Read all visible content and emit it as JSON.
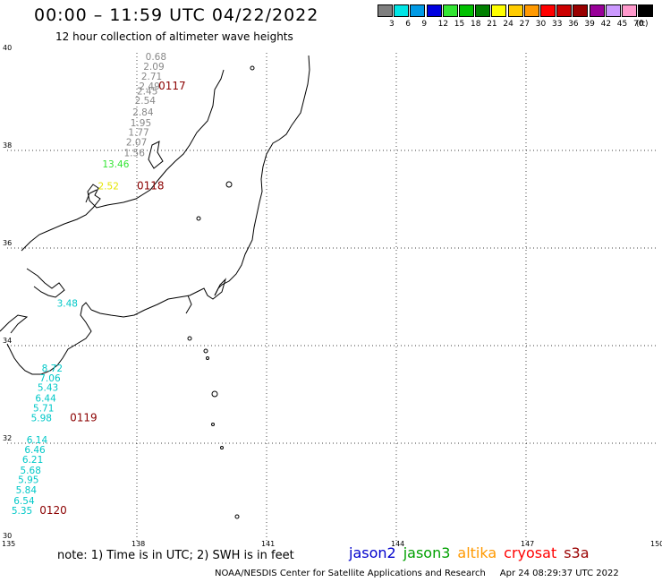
{
  "header": {
    "title": "00:00 – 11:59 UTC 04/22/2022",
    "subtitle": "12 hour collection of altimeter wave heights"
  },
  "color_scale": {
    "unit": "(ft)",
    "bins": [
      {
        "label": "3",
        "color": "#7f7f7f"
      },
      {
        "label": "6",
        "color": "#00e5e5"
      },
      {
        "label": "9",
        "color": "#009ae5"
      },
      {
        "label": "12",
        "color": "#0000e0"
      },
      {
        "label": "15",
        "color": "#33e533"
      },
      {
        "label": "18",
        "color": "#00c000"
      },
      {
        "label": "21",
        "color": "#008000"
      },
      {
        "label": "24",
        "color": "#ffff00"
      },
      {
        "label": "27",
        "color": "#ffcc00"
      },
      {
        "label": "30",
        "color": "#ff9900"
      },
      {
        "label": "33",
        "color": "#ff0000"
      },
      {
        "label": "36",
        "color": "#cc0000"
      },
      {
        "label": "39",
        "color": "#990000"
      },
      {
        "label": "42",
        "color": "#990099"
      },
      {
        "label": "45",
        "color": "#cc99ff"
      },
      {
        "label": "70",
        "color": "#ff99cc"
      },
      {
        "label": "",
        "color": "#000000"
      }
    ]
  },
  "map": {
    "lon_labels": [
      "135",
      "138",
      "141",
      "144",
      "147",
      "150"
    ],
    "lat_labels": [
      "30",
      "32",
      "34",
      "36",
      "38",
      "40"
    ],
    "lon_range": [
      135,
      150
    ],
    "lat_range": [
      30,
      40
    ]
  },
  "tracks": [
    {
      "pass": "0117",
      "color": "#888888",
      "points": [
        {
          "value": "0.68",
          "lon": 138.2,
          "lat": 39.85
        },
        {
          "value": "2.09",
          "lon": 138.15,
          "lat": 39.65
        },
        {
          "value": "2.71",
          "lon": 138.1,
          "lat": 39.45
        },
        {
          "value": "2.49",
          "lon": 138.05,
          "lat": 39.25
        },
        {
          "value": "2.45",
          "lon": 138.0,
          "lat": 39.15
        },
        {
          "value": "2.54",
          "lon": 137.95,
          "lat": 38.95
        },
        {
          "value": "2.84",
          "lon": 137.9,
          "lat": 38.72
        },
        {
          "value": "1.95",
          "lon": 137.85,
          "lat": 38.5
        },
        {
          "value": "1.77",
          "lon": 137.8,
          "lat": 38.3
        },
        {
          "value": "2.07",
          "lon": 137.75,
          "lat": 38.1
        },
        {
          "value": "1.56",
          "lon": 137.7,
          "lat": 37.88
        }
      ],
      "label_lon": 138.5,
      "label_lat": 39.25
    },
    {
      "pass": "0118",
      "color": "#e5c000",
      "points": [
        {
          "value": "13.46",
          "lon": 137.2,
          "lat": 37.65
        },
        {
          "value": "2.52",
          "lon": 137.1,
          "lat": 37.2
        }
      ],
      "point_colors": [
        "#33e533",
        "#e5e500"
      ],
      "label_lon": 138.0,
      "label_lat": 37.2
    },
    {
      "pass": "0119",
      "color": "#00c8c8",
      "points": [
        {
          "value": "3.48",
          "lon": 136.15,
          "lat": 34.8
        },
        {
          "value": "8.72",
          "lon": 135.8,
          "lat": 33.47
        },
        {
          "value": "7.06",
          "lon": 135.75,
          "lat": 33.27
        },
        {
          "value": "5.43",
          "lon": 135.7,
          "lat": 33.07
        },
        {
          "value": "6.44",
          "lon": 135.65,
          "lat": 32.85
        },
        {
          "value": "5.71",
          "lon": 135.6,
          "lat": 32.65
        },
        {
          "value": "5.98",
          "lon": 135.55,
          "lat": 32.45
        }
      ],
      "label_lon": 136.45,
      "label_lat": 32.45
    },
    {
      "pass": "0120",
      "color": "#00c8c8",
      "points": [
        {
          "value": "6.14",
          "lon": 135.45,
          "lat": 32.0
        },
        {
          "value": "6.46",
          "lon": 135.4,
          "lat": 31.8
        },
        {
          "value": "6.21",
          "lon": 135.35,
          "lat": 31.6
        },
        {
          "value": "5.68",
          "lon": 135.3,
          "lat": 31.38
        },
        {
          "value": "5.95",
          "lon": 135.25,
          "lat": 31.18
        },
        {
          "value": "5.84",
          "lon": 135.2,
          "lat": 30.97
        },
        {
          "value": "6.54",
          "lon": 135.15,
          "lat": 30.75
        },
        {
          "value": "5.35",
          "lon": 135.1,
          "lat": 30.55
        }
      ],
      "label_lon": 135.75,
      "label_lat": 30.55
    }
  ],
  "footer": {
    "note": "note:  1) Time is in UTC;  2) SWH is in feet",
    "credit": "NOAA/NESDIS Center for Satellite Applications and Research",
    "timestamp": "Apr 24 08:29:37 UTC 2022"
  },
  "satellites": [
    {
      "name": "jason2",
      "color": "#0000cc"
    },
    {
      "name": "jason3",
      "color": "#00a000"
    },
    {
      "name": "altika",
      "color": "#ff9900"
    },
    {
      "name": "cryosat",
      "color": "#ff0000"
    },
    {
      "name": "s3a",
      "color": "#990000"
    }
  ]
}
